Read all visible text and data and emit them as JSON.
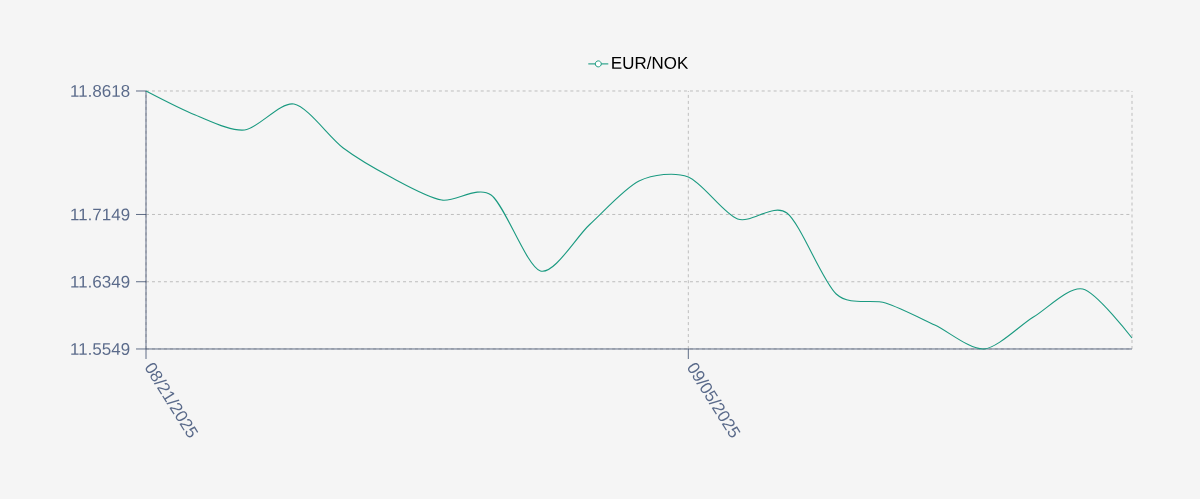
{
  "chart_data": {
    "type": "line",
    "categories": [
      "08/21/2025",
      null,
      null,
      null,
      null,
      null,
      null,
      null,
      null,
      null,
      null,
      "09/05/2025",
      null,
      null,
      null,
      null,
      null,
      null,
      null,
      null,
      null
    ],
    "series": [
      {
        "name": "EUR/NOK",
        "color": "#1a9a80",
        "values": [
          11.8618,
          11.8333,
          11.8154,
          11.8463,
          11.794,
          11.7583,
          11.7321,
          11.7381,
          11.6477,
          11.703,
          11.7547,
          11.7595,
          11.7095,
          11.7166,
          11.6203,
          11.6096,
          11.5834,
          11.5549,
          11.5929,
          11.6263,
          11.568
        ]
      }
    ],
    "ylim": [
      11.5549,
      11.8618
    ],
    "yticks": [
      11.5549,
      11.6349,
      11.7149,
      11.8618
    ],
    "grid": true,
    "legend": "top"
  }
}
